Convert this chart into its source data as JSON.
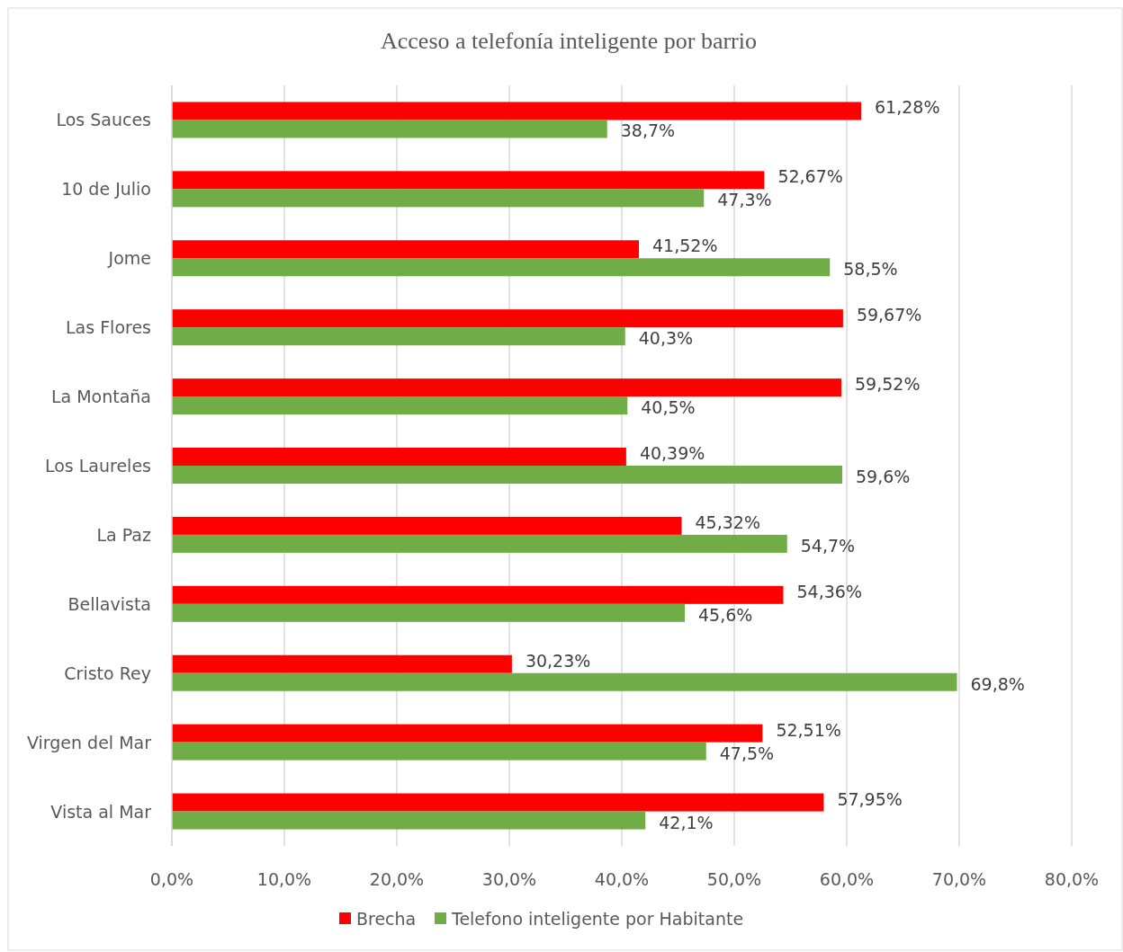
{
  "chart_data": {
    "type": "bar",
    "orientation": "horizontal",
    "title": "Acceso a telefonía inteligente por barrio",
    "categories": [
      "Los Sauces",
      "10 de Julio",
      "Jome",
      "Las Flores",
      "La Montaña",
      "Los Laureles",
      "La Paz",
      "Bellavista",
      "Cristo Rey",
      "Virgen del Mar",
      "Vista al Mar"
    ],
    "series": [
      {
        "name": "Brecha",
        "color": "#ff0000",
        "values": [
          61.28,
          52.67,
          41.52,
          59.67,
          59.52,
          40.39,
          45.32,
          54.36,
          30.23,
          52.51,
          57.95
        ],
        "value_labels": [
          "61,28%",
          "52,67%",
          "41,52%",
          "59,67%",
          "59,52%",
          "40,39%",
          "45,32%",
          "54,36%",
          "30,23%",
          "52,51%",
          "57,95%"
        ]
      },
      {
        "name": "Telefono inteligente por Habitante",
        "color": "#70ad47",
        "values": [
          38.7,
          47.3,
          58.5,
          40.3,
          40.5,
          59.6,
          54.7,
          45.6,
          69.8,
          47.5,
          42.1
        ],
        "value_labels": [
          "38,7%",
          "47,3%",
          "58,5%",
          "40,3%",
          "40,5%",
          "59,6%",
          "54,7%",
          "45,6%",
          "69,8%",
          "47,5%",
          "42,1%"
        ]
      }
    ],
    "xlim": [
      0,
      80
    ],
    "xticks": [
      {
        "value": 0,
        "label": "0,0%"
      },
      {
        "value": 10,
        "label": "10,0%"
      },
      {
        "value": 20,
        "label": "20,0%"
      },
      {
        "value": 30,
        "label": "30,0%"
      },
      {
        "value": 40,
        "label": "40,0%"
      },
      {
        "value": 50,
        "label": "50,0%"
      },
      {
        "value": 60,
        "label": "60,0%"
      },
      {
        "value": 70,
        "label": "70,0%"
      },
      {
        "value": 80,
        "label": "80,0%"
      }
    ],
    "grid": "x",
    "legend": "bottom"
  }
}
